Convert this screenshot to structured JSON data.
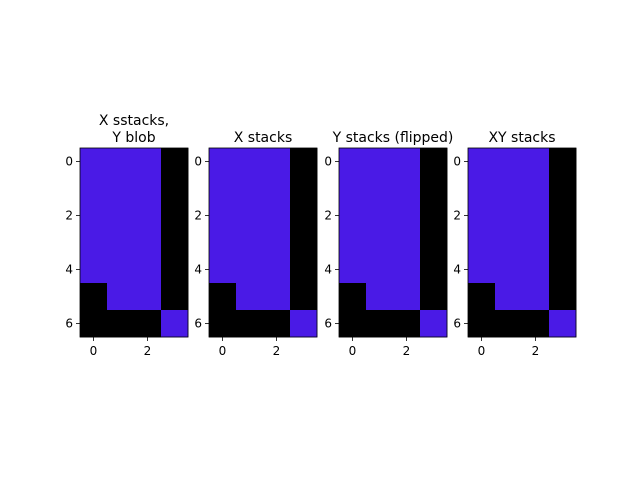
{
  "chart_data": [
    {
      "type": "heatmap",
      "title_lines": [
        "X sstacks,",
        "Y blob"
      ],
      "xlim": [
        -0.5,
        3.5
      ],
      "ylim": [
        6.5,
        -0.5
      ],
      "xticks": [
        0,
        2
      ],
      "yticks": [
        0,
        2,
        4,
        6
      ],
      "colors": [
        "#000000",
        "#4a1ae6"
      ],
      "grid": [
        [
          1,
          1,
          1,
          0
        ],
        [
          1,
          1,
          1,
          0
        ],
        [
          1,
          1,
          1,
          0
        ],
        [
          1,
          1,
          1,
          0
        ],
        [
          1,
          1,
          1,
          0
        ],
        [
          0,
          1,
          1,
          0
        ],
        [
          0,
          0,
          0,
          1
        ]
      ]
    },
    {
      "type": "heatmap",
      "title_lines": [
        "X stacks"
      ],
      "xlim": [
        -0.5,
        3.5
      ],
      "ylim": [
        6.5,
        -0.5
      ],
      "xticks": [
        0,
        2
      ],
      "yticks": [
        0,
        2,
        4,
        6
      ],
      "colors": [
        "#000000",
        "#4a1ae6"
      ],
      "grid": [
        [
          1,
          1,
          1,
          0
        ],
        [
          1,
          1,
          1,
          0
        ],
        [
          1,
          1,
          1,
          0
        ],
        [
          1,
          1,
          1,
          0
        ],
        [
          1,
          1,
          1,
          0
        ],
        [
          0,
          1,
          1,
          0
        ],
        [
          0,
          0,
          0,
          1
        ]
      ]
    },
    {
      "type": "heatmap",
      "title_lines": [
        "Y stacks (flipped)"
      ],
      "xlim": [
        -0.5,
        3.5
      ],
      "ylim": [
        6.5,
        -0.5
      ],
      "xticks": [
        0,
        2
      ],
      "yticks": [
        0,
        2,
        4,
        6
      ],
      "colors": [
        "#000000",
        "#4a1ae6"
      ],
      "grid": [
        [
          1,
          1,
          1,
          0
        ],
        [
          1,
          1,
          1,
          0
        ],
        [
          1,
          1,
          1,
          0
        ],
        [
          1,
          1,
          1,
          0
        ],
        [
          1,
          1,
          1,
          0
        ],
        [
          0,
          1,
          1,
          0
        ],
        [
          0,
          0,
          0,
          1
        ]
      ]
    },
    {
      "type": "heatmap",
      "title_lines": [
        "XY stacks"
      ],
      "xlim": [
        -0.5,
        3.5
      ],
      "ylim": [
        6.5,
        -0.5
      ],
      "xticks": [
        0,
        2
      ],
      "yticks": [
        0,
        2,
        4,
        6
      ],
      "colors": [
        "#000000",
        "#4a1ae6"
      ],
      "grid": [
        [
          1,
          1,
          1,
          0
        ],
        [
          1,
          1,
          1,
          0
        ],
        [
          1,
          1,
          1,
          0
        ],
        [
          1,
          1,
          1,
          0
        ],
        [
          1,
          1,
          1,
          0
        ],
        [
          0,
          1,
          1,
          0
        ],
        [
          0,
          0,
          0,
          1
        ]
      ]
    }
  ]
}
